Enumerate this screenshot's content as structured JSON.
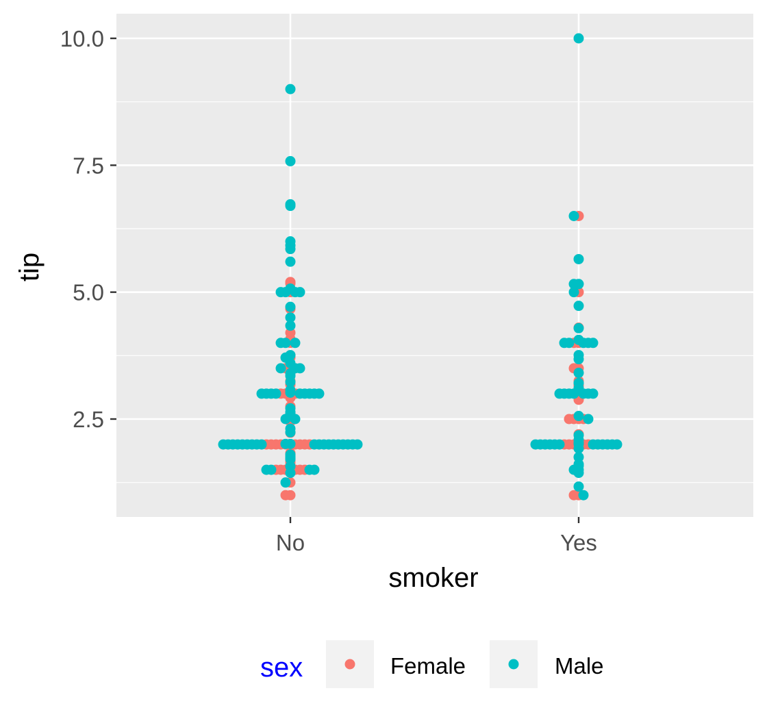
{
  "colors": {
    "panel_bg": "#EBEBEB",
    "grid": "#FFFFFF",
    "female": "#F8766D",
    "male": "#00BFC4",
    "legend_title": "#0000FF",
    "legend_key_bg": "#F2F2F2"
  },
  "chart_data": {
    "type": "scatter",
    "title": "",
    "xlabel": "smoker",
    "ylabel": "tip",
    "categories": [
      "No",
      "Yes"
    ],
    "y_ticks": [
      "2.5",
      "5.0",
      "7.5",
      "10.0"
    ],
    "ylim": [
      0.6,
      10.5
    ],
    "grid": true,
    "legend_position": "bottom",
    "legend": {
      "title": "sex",
      "entries": [
        "Female",
        "Male"
      ]
    },
    "series": [
      {
        "name": "Female",
        "points": [
          [
            "No",
            1.0
          ],
          [
            "No",
            1.0
          ],
          [
            "No",
            1.25
          ],
          [
            "No",
            1.5
          ],
          [
            "No",
            1.5
          ],
          [
            "No",
            1.5
          ],
          [
            "No",
            1.5
          ],
          [
            "No",
            1.5
          ],
          [
            "No",
            1.5
          ],
          [
            "No",
            1.5
          ],
          [
            "No",
            1.58
          ],
          [
            "No",
            1.64
          ],
          [
            "No",
            1.68
          ],
          [
            "No",
            1.83
          ],
          [
            "No",
            2.0
          ],
          [
            "No",
            2.0
          ],
          [
            "No",
            2.0
          ],
          [
            "No",
            2.0
          ],
          [
            "No",
            2.0
          ],
          [
            "No",
            2.0
          ],
          [
            "No",
            2.0
          ],
          [
            "No",
            2.0
          ],
          [
            "No",
            2.0
          ],
          [
            "No",
            2.0
          ],
          [
            "No",
            2.23
          ],
          [
            "No",
            2.45
          ],
          [
            "No",
            2.5
          ],
          [
            "No",
            2.54
          ],
          [
            "No",
            2.62
          ],
          [
            "No",
            2.75
          ],
          [
            "No",
            2.92
          ],
          [
            "No",
            3.0
          ],
          [
            "No",
            3.0
          ],
          [
            "No",
            3.0
          ],
          [
            "No",
            3.0
          ],
          [
            "No",
            3.06
          ],
          [
            "No",
            3.18
          ],
          [
            "No",
            3.25
          ],
          [
            "No",
            3.48
          ],
          [
            "No",
            3.5
          ],
          [
            "No",
            3.5
          ],
          [
            "No",
            3.71
          ],
          [
            "No",
            3.75
          ],
          [
            "No",
            4.0
          ],
          [
            "No",
            4.08
          ],
          [
            "No",
            4.2
          ],
          [
            "No",
            4.67
          ],
          [
            "No",
            5.0
          ],
          [
            "No",
            5.17
          ],
          [
            "No",
            5.2
          ],
          [
            "Yes",
            1.0
          ],
          [
            "Yes",
            1.0
          ],
          [
            "Yes",
            2.0
          ],
          [
            "Yes",
            2.0
          ],
          [
            "Yes",
            2.0
          ],
          [
            "Yes",
            2.0
          ],
          [
            "Yes",
            2.0
          ],
          [
            "Yes",
            2.0
          ],
          [
            "Yes",
            2.2
          ],
          [
            "Yes",
            2.5
          ],
          [
            "Yes",
            2.5
          ],
          [
            "Yes",
            2.5
          ],
          [
            "Yes",
            2.5
          ],
          [
            "Yes",
            2.88
          ],
          [
            "Yes",
            3.0
          ],
          [
            "Yes",
            3.09
          ],
          [
            "Yes",
            3.16
          ],
          [
            "Yes",
            3.18
          ],
          [
            "Yes",
            3.25
          ],
          [
            "Yes",
            3.5
          ],
          [
            "Yes",
            3.5
          ],
          [
            "Yes",
            4.0
          ],
          [
            "Yes",
            4.0
          ],
          [
            "Yes",
            4.3
          ],
          [
            "Yes",
            5.0
          ],
          [
            "Yes",
            6.5
          ]
        ]
      },
      {
        "name": "Male",
        "points": [
          [
            "No",
            1.25
          ],
          [
            "No",
            1.44
          ],
          [
            "No",
            1.5
          ],
          [
            "No",
            1.5
          ],
          [
            "No",
            1.5
          ],
          [
            "No",
            1.5
          ],
          [
            "No",
            1.57
          ],
          [
            "No",
            1.71
          ],
          [
            "No",
            1.73
          ],
          [
            "No",
            1.76
          ],
          [
            "No",
            1.8
          ],
          [
            "No",
            2.0
          ],
          [
            "No",
            2.0
          ],
          [
            "No",
            2.0
          ],
          [
            "No",
            2.0
          ],
          [
            "No",
            2.0
          ],
          [
            "No",
            2.0
          ],
          [
            "No",
            2.0
          ],
          [
            "No",
            2.0
          ],
          [
            "No",
            2.0
          ],
          [
            "No",
            2.0
          ],
          [
            "No",
            2.0
          ],
          [
            "No",
            2.0
          ],
          [
            "No",
            2.0
          ],
          [
            "No",
            2.0
          ],
          [
            "No",
            2.0
          ],
          [
            "No",
            2.0
          ],
          [
            "No",
            2.0
          ],
          [
            "No",
            2.0
          ],
          [
            "No",
            2.0
          ],
          [
            "No",
            2.01
          ],
          [
            "No",
            2.01
          ],
          [
            "No",
            2.24
          ],
          [
            "No",
            2.31
          ],
          [
            "No",
            2.5
          ],
          [
            "No",
            2.5
          ],
          [
            "No",
            2.55
          ],
          [
            "No",
            2.56
          ],
          [
            "No",
            2.6
          ],
          [
            "No",
            2.64
          ],
          [
            "No",
            2.71
          ],
          [
            "No",
            3.0
          ],
          [
            "No",
            3.0
          ],
          [
            "No",
            3.0
          ],
          [
            "No",
            3.0
          ],
          [
            "No",
            3.0
          ],
          [
            "No",
            3.0
          ],
          [
            "No",
            3.0
          ],
          [
            "No",
            3.0
          ],
          [
            "No",
            3.0
          ],
          [
            "No",
            3.02
          ],
          [
            "No",
            3.07
          ],
          [
            "No",
            3.23
          ],
          [
            "No",
            3.35
          ],
          [
            "No",
            3.4
          ],
          [
            "No",
            3.5
          ],
          [
            "No",
            3.5
          ],
          [
            "No",
            3.5
          ],
          [
            "No",
            3.6
          ],
          [
            "No",
            3.71
          ],
          [
            "No",
            3.76
          ],
          [
            "No",
            4.0
          ],
          [
            "No",
            4.0
          ],
          [
            "No",
            4.0
          ],
          [
            "No",
            4.34
          ],
          [
            "No",
            4.5
          ],
          [
            "No",
            4.71
          ],
          [
            "No",
            5.0
          ],
          [
            "No",
            5.0
          ],
          [
            "No",
            5.0
          ],
          [
            "No",
            5.0
          ],
          [
            "No",
            5.07
          ],
          [
            "No",
            5.6
          ],
          [
            "No",
            5.85
          ],
          [
            "No",
            5.92
          ],
          [
            "No",
            6.0
          ],
          [
            "No",
            6.7
          ],
          [
            "No",
            6.73
          ],
          [
            "No",
            7.58
          ],
          [
            "No",
            9.0
          ],
          [
            "Yes",
            1.0
          ],
          [
            "Yes",
            1.17
          ],
          [
            "Yes",
            1.44
          ],
          [
            "Yes",
            1.5
          ],
          [
            "Yes",
            1.5
          ],
          [
            "Yes",
            1.58
          ],
          [
            "Yes",
            1.61
          ],
          [
            "Yes",
            1.75
          ],
          [
            "Yes",
            1.92
          ],
          [
            "Yes",
            2.0
          ],
          [
            "Yes",
            2.0
          ],
          [
            "Yes",
            2.0
          ],
          [
            "Yes",
            2.0
          ],
          [
            "Yes",
            2.0
          ],
          [
            "Yes",
            2.0
          ],
          [
            "Yes",
            2.0
          ],
          [
            "Yes",
            2.0
          ],
          [
            "Yes",
            2.0
          ],
          [
            "Yes",
            2.0
          ],
          [
            "Yes",
            2.0
          ],
          [
            "Yes",
            2.0
          ],
          [
            "Yes",
            2.01
          ],
          [
            "Yes",
            2.03
          ],
          [
            "Yes",
            2.09
          ],
          [
            "Yes",
            2.18
          ],
          [
            "Yes",
            2.56
          ],
          [
            "Yes",
            2.5
          ],
          [
            "Yes",
            3.0
          ],
          [
            "Yes",
            3.0
          ],
          [
            "Yes",
            3.0
          ],
          [
            "Yes",
            3.0
          ],
          [
            "Yes",
            3.0
          ],
          [
            "Yes",
            3.0
          ],
          [
            "Yes",
            3.0
          ],
          [
            "Yes",
            3.11
          ],
          [
            "Yes",
            3.21
          ],
          [
            "Yes",
            3.41
          ],
          [
            "Yes",
            3.68
          ],
          [
            "Yes",
            3.76
          ],
          [
            "Yes",
            4.0
          ],
          [
            "Yes",
            4.0
          ],
          [
            "Yes",
            4.0
          ],
          [
            "Yes",
            4.0
          ],
          [
            "Yes",
            4.0
          ],
          [
            "Yes",
            4.06
          ],
          [
            "Yes",
            4.29
          ],
          [
            "Yes",
            4.73
          ],
          [
            "Yes",
            5.0
          ],
          [
            "Yes",
            5.16
          ],
          [
            "Yes",
            5.16
          ],
          [
            "Yes",
            5.65
          ],
          [
            "Yes",
            6.5
          ],
          [
            "Yes",
            10.0
          ]
        ]
      }
    ]
  }
}
